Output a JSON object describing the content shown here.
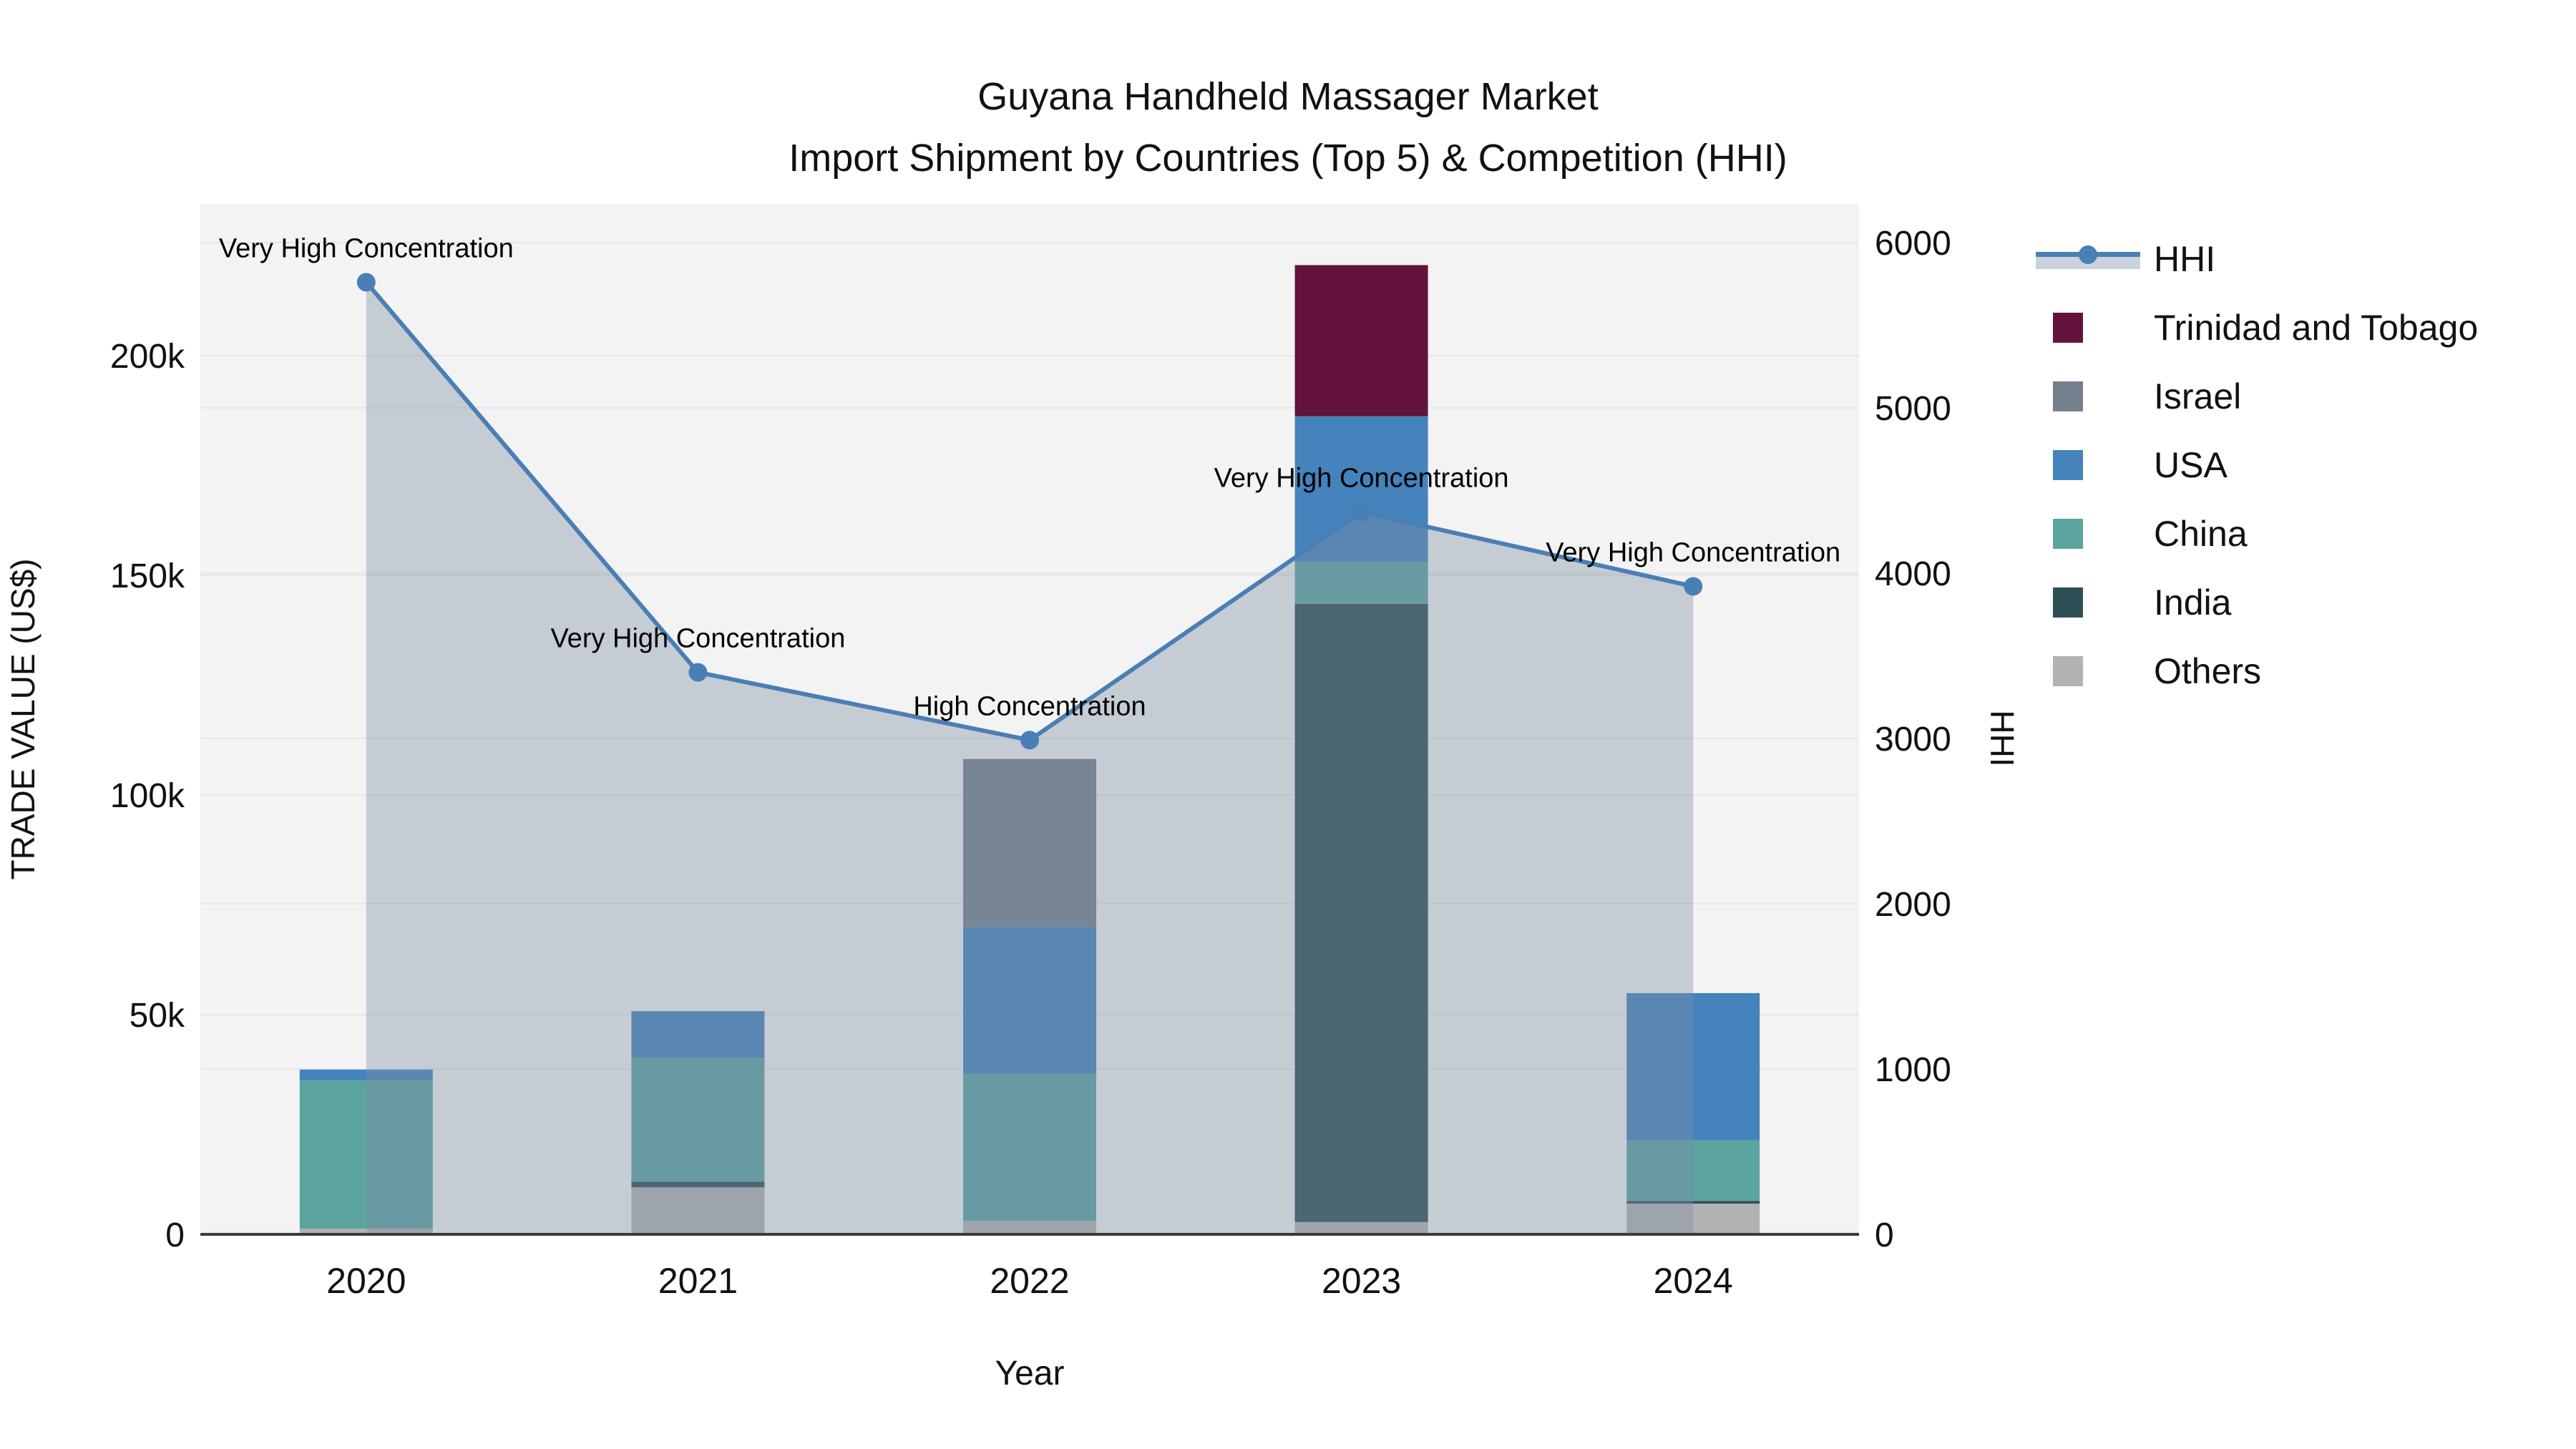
{
  "chart_data": {
    "type": "bar",
    "subtype": "stacked-bars-with-secondary-axis-line",
    "title_line1": "Guyana Handheld Massager Market",
    "title_line2": "Import Shipment by Countries (Top 5) & Competition (HHI)",
    "xlabel": "Year",
    "ylabel_left": "TRADE VALUE (US$)",
    "ylabel_right": "HHI",
    "categories": [
      "2020",
      "2021",
      "2022",
      "2023",
      "2024"
    ],
    "y_left_ticks": [
      {
        "value": 0,
        "label": "0"
      },
      {
        "value": 50000,
        "label": "50k"
      },
      {
        "value": 100000,
        "label": "100k"
      },
      {
        "value": 150000,
        "label": "150k"
      },
      {
        "value": 200000,
        "label": "200k"
      }
    ],
    "y_right_ticks": [
      {
        "value": 0,
        "label": "0"
      },
      {
        "value": 1000,
        "label": "1000"
      },
      {
        "value": 2000,
        "label": "2000"
      },
      {
        "value": 3000,
        "label": "3000"
      },
      {
        "value": 4000,
        "label": "4000"
      },
      {
        "value": 5000,
        "label": "5000"
      },
      {
        "value": 6000,
        "label": "6000"
      }
    ],
    "y_left_range": [
      0,
      234500
    ],
    "y_right_range": [
      0,
      6235
    ],
    "grid": true,
    "legend_position": "right",
    "bar_series_bottom_to_top": [
      {
        "name": "Others",
        "color": "#B2B2B2",
        "values": [
          1300,
          10700,
          3100,
          2800,
          7000
        ]
      },
      {
        "name": "India",
        "color": "#2E4E55",
        "values": [
          0,
          1300,
          0,
          140700,
          600
        ]
      },
      {
        "name": "China",
        "color": "#5BA4A0",
        "values": [
          33800,
          28200,
          33400,
          9600,
          13800
        ]
      },
      {
        "name": "USA",
        "color": "#4483BB",
        "values": [
          2400,
          10600,
          33400,
          33100,
          33500
        ]
      },
      {
        "name": "Israel",
        "color": "#75808E",
        "values": [
          0,
          0,
          38300,
          0,
          0
        ]
      },
      {
        "name": "Trinidad and Tobago",
        "color": "#63133B",
        "values": [
          0,
          0,
          0,
          34400,
          0
        ]
      }
    ],
    "bar_totals": [
      37500,
      50800,
      108200,
      220600,
      54900
    ],
    "line_series": {
      "name": "HHI",
      "axis": "right",
      "values": [
        5760,
        3400,
        2990,
        4370,
        3920
      ],
      "color": "#4A7FB5",
      "area_fill": "rgba(125,141,163,0.38)"
    },
    "annotations": [
      {
        "category": "2020",
        "text": "Very High Concentration"
      },
      {
        "category": "2021",
        "text": "Very High Concentration"
      },
      {
        "category": "2022",
        "text": "High Concentration"
      },
      {
        "category": "2023",
        "text": "Very High Concentration"
      },
      {
        "category": "2024",
        "text": "Very High Concentration"
      }
    ]
  },
  "legend": {
    "items": [
      {
        "label": "HHI",
        "type": "line",
        "color": "#4A7FB5"
      },
      {
        "label": "Trinidad and Tobago",
        "type": "square",
        "color": "#63133B"
      },
      {
        "label": "Israel",
        "type": "square",
        "color": "#75808E"
      },
      {
        "label": "USA",
        "type": "square",
        "color": "#4483BB"
      },
      {
        "label": "China",
        "type": "square",
        "color": "#5BA4A0"
      },
      {
        "label": "India",
        "type": "square",
        "color": "#2E4E55"
      },
      {
        "label": "Others",
        "type": "square",
        "color": "#B2B2B2"
      }
    ]
  },
  "colors": {
    "plot_background": "#F3F3F3",
    "gridline": "#E6E6E6",
    "axis_line": "#3B3B3B",
    "text": "#111111"
  }
}
